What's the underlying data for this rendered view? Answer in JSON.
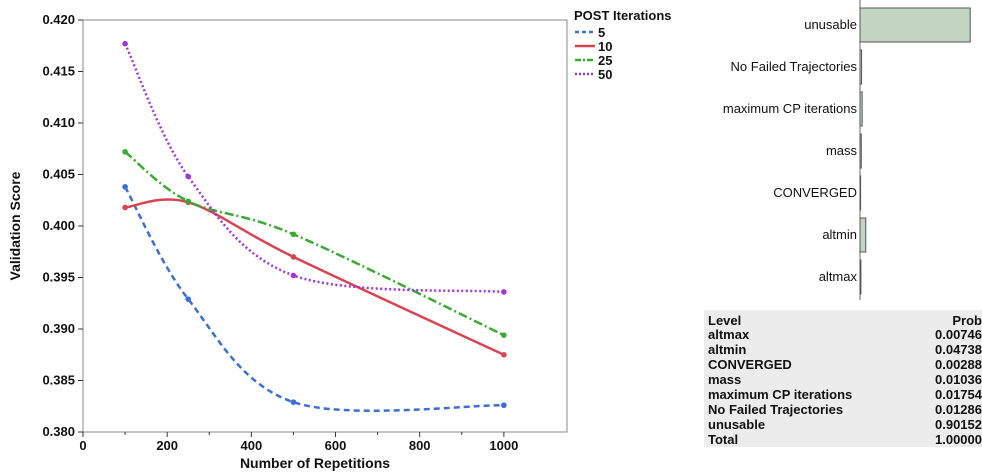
{
  "chart_data": [
    {
      "type": "line",
      "xlabel": "Number of Repetitions",
      "ylabel": "Validation Score",
      "xlim": [
        0,
        1150
      ],
      "ylim": [
        0.38,
        0.42
      ],
      "xticks": [
        0,
        200,
        400,
        600,
        800,
        1000
      ],
      "yticks": [
        0.38,
        0.385,
        0.39,
        0.395,
        0.4,
        0.405,
        0.41,
        0.415,
        0.42
      ],
      "grid": false,
      "legend": {
        "title": "POST Iterations",
        "position": "top-right"
      },
      "x": [
        100,
        250,
        500,
        1000
      ],
      "series": [
        {
          "name": "5",
          "values": [
            0.4038,
            0.3929,
            0.3829,
            0.3826
          ],
          "color": "#3b6fd4",
          "dash": "dashed"
        },
        {
          "name": "10",
          "values": [
            0.4018,
            0.4023,
            0.397,
            0.3875
          ],
          "color": "#d64550",
          "dash": "solid"
        },
        {
          "name": "25",
          "values": [
            0.4072,
            0.4024,
            0.3992,
            0.3894
          ],
          "color": "#3aaa35",
          "dash": "dash-dot"
        },
        {
          "name": "50",
          "values": [
            0.4177,
            0.4048,
            0.3952,
            0.3936
          ],
          "color": "#a035d6",
          "dash": "dotted"
        }
      ]
    },
    {
      "type": "bar",
      "orientation": "horizontal",
      "categories": [
        "unusable",
        "No Failed Trajectories",
        "maximum CP iterations",
        "mass",
        "CONVERGED",
        "altmin",
        "altmax"
      ],
      "values": [
        0.90152,
        0.01286,
        0.01754,
        0.01036,
        0.00288,
        0.04738,
        0.00746
      ],
      "bar_color": "#c2d5c2",
      "bar_outline": "#555555"
    }
  ],
  "prob_table": {
    "headers": [
      "Level",
      "Prob"
    ],
    "rows": [
      [
        "altmax",
        "0.00746"
      ],
      [
        "altmin",
        "0.04738"
      ],
      [
        "CONVERGED",
        "0.00288"
      ],
      [
        "mass",
        "0.01036"
      ],
      [
        "maximum CP iterations",
        "0.01754"
      ],
      [
        "No Failed Trajectories",
        "0.01286"
      ],
      [
        "unusable",
        "0.90152"
      ],
      [
        "Total",
        "1.00000"
      ]
    ]
  }
}
